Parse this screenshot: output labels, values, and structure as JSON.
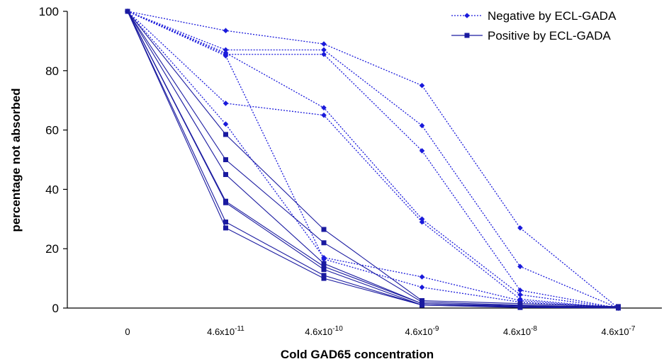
{
  "chart_data": {
    "type": "line",
    "xlabel": "Cold GAD65 concentration",
    "ylabel": "percentage not absorbed",
    "categories": [
      {
        "base": "0",
        "exp": ""
      },
      {
        "base": "4.6x10",
        "exp": "-11"
      },
      {
        "base": "4.6x10",
        "exp": "-10"
      },
      {
        "base": "4.6x10",
        "exp": "-9"
      },
      {
        "base": "4.6x10",
        "exp": "-8"
      },
      {
        "base": "4.6x10",
        "exp": "-7"
      }
    ],
    "ylim": [
      0,
      100
    ],
    "yticks": [
      "0",
      "20",
      "40",
      "60",
      "80",
      "100"
    ],
    "legend_position": "top-right",
    "groups": [
      {
        "name": "Negative by ECL-GADA",
        "style": "dotted",
        "marker": "diamond",
        "color": "#1a1adb",
        "series": [
          [
            100,
            93.5,
            89,
            75,
            27,
            0
          ],
          [
            100,
            87,
            87,
            61.5,
            14,
            0
          ],
          [
            100,
            85.5,
            85.5,
            53,
            6,
            0
          ],
          [
            100,
            86,
            67.5,
            30,
            4.5,
            0
          ],
          [
            100,
            69,
            65,
            29,
            3,
            0
          ],
          [
            100,
            62,
            17,
            10.5,
            2.5,
            0
          ],
          [
            100,
            85,
            16.5,
            7,
            2,
            0
          ]
        ]
      },
      {
        "name": "Positive by ECL-GADA",
        "style": "solid",
        "marker": "square",
        "color": "#1a1aa0",
        "series": [
          [
            100,
            58.5,
            26.5,
            2.5,
            1.5,
            0.5
          ],
          [
            100,
            50,
            22,
            2,
            1,
            0.3
          ],
          [
            100,
            45,
            15,
            1.5,
            0.8,
            0.2
          ],
          [
            100,
            36,
            14,
            1.5,
            0.5,
            0.2
          ],
          [
            100,
            35.5,
            13,
            1,
            0.5,
            0.1
          ],
          [
            100,
            29,
            11,
            1,
            0.3,
            0.1
          ],
          [
            100,
            27,
            10,
            1,
            0.2,
            0
          ]
        ]
      }
    ]
  }
}
